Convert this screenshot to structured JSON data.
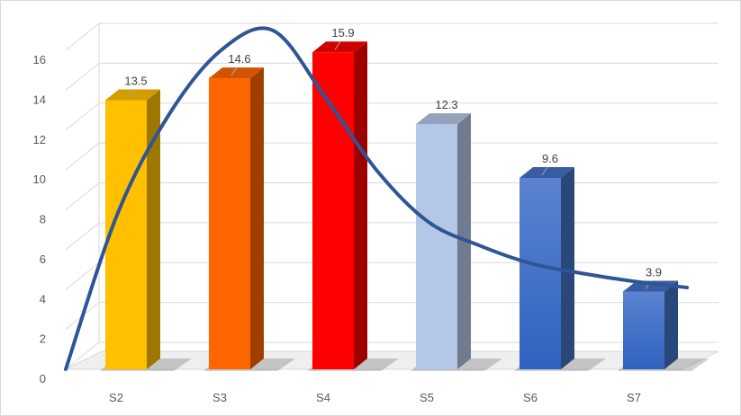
{
  "chart_data": {
    "type": "bar",
    "categories": [
      "S2",
      "S3",
      "S4",
      "S5",
      "S6",
      "S7"
    ],
    "values": [
      13.5,
      14.6,
      15.9,
      12.3,
      9.6,
      3.9
    ],
    "data_labels": [
      "13.5",
      "14.6",
      "15.9",
      "12.3",
      "9.6",
      "3.9"
    ],
    "bar_colors": [
      "#ffc000",
      "#ff6600",
      "#ff0000",
      "#b4c7e7",
      "#4472c4",
      "#4472c4"
    ],
    "y_ticks": [
      "0",
      "2",
      "4",
      "6",
      "8",
      "10",
      "12",
      "14",
      "16"
    ],
    "ylim": [
      0,
      16
    ],
    "grid": true,
    "legend": "none",
    "trend_line": {
      "color": "#2f5597",
      "x": [
        0.5,
        1,
        1.5,
        2,
        2.5,
        3,
        3.5,
        4,
        4.5,
        5,
        5.5,
        6,
        6.5
      ],
      "y": [
        0,
        7.8,
        12.8,
        16.0,
        17.0,
        13.7,
        10.0,
        7.4,
        6.2,
        5.3,
        4.8,
        4.4,
        4.1
      ]
    }
  }
}
